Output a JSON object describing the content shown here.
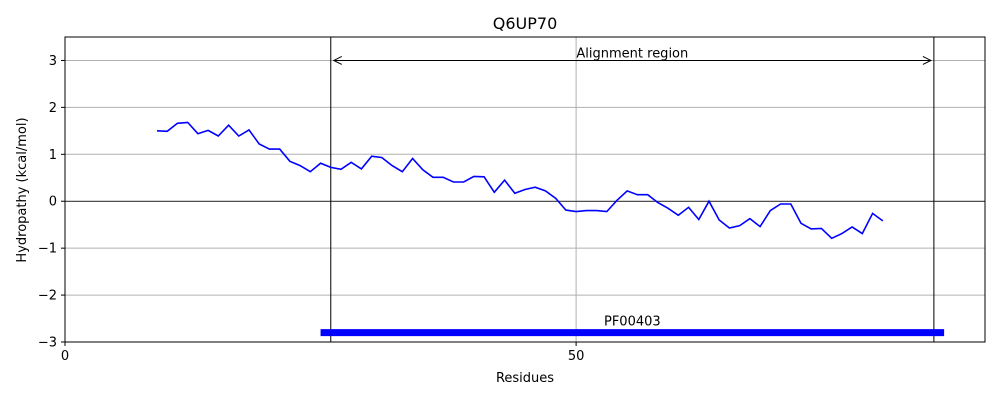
{
  "chart_data": {
    "type": "line",
    "title": "Q6UP70",
    "xlabel": "Residues",
    "ylabel": "Hydropathy (kcal/mol)",
    "xlim": [
      0,
      90
    ],
    "ylim": [
      -3,
      3.5
    ],
    "xticks": [
      0,
      50
    ],
    "yticks": [
      -3,
      -2,
      -1,
      0,
      1,
      2,
      3
    ],
    "grid": true,
    "series": [
      {
        "color": "#0000ff",
        "x": [
          9,
          10,
          11,
          12,
          13,
          14,
          15,
          16,
          17,
          18,
          19,
          20,
          21,
          22,
          23,
          24,
          25,
          26,
          27,
          28,
          29,
          30,
          31,
          32,
          33,
          34,
          35,
          36,
          37,
          38,
          39,
          40,
          41,
          42,
          43,
          44,
          45,
          46,
          47,
          48,
          49,
          50,
          51,
          52,
          53,
          54,
          55,
          56,
          57,
          58,
          59,
          60,
          61,
          62,
          63,
          64,
          65,
          66,
          67,
          68,
          69,
          70,
          71,
          72,
          73,
          74,
          75,
          76,
          77,
          78,
          79,
          80
        ],
        "y": [
          1.5,
          1.49,
          1.66,
          1.68,
          1.44,
          1.51,
          1.39,
          1.62,
          1.39,
          1.52,
          1.22,
          1.11,
          1.11,
          0.85,
          0.76,
          0.63,
          0.81,
          0.72,
          0.68,
          0.83,
          0.69,
          0.96,
          0.93,
          0.76,
          0.63,
          0.91,
          0.67,
          0.51,
          0.51,
          0.41,
          0.41,
          0.53,
          0.52,
          0.19,
          0.45,
          0.17,
          0.25,
          0.3,
          0.22,
          0.06,
          -0.19,
          -0.22,
          -0.2,
          -0.2,
          -0.22,
          0.02,
          0.22,
          0.14,
          0.14,
          -0.03,
          -0.15,
          -0.3,
          -0.13,
          -0.39,
          0.0,
          -0.4,
          -0.57,
          -0.52,
          -0.37,
          -0.54,
          -0.2,
          -0.06,
          -0.06,
          -0.47,
          -0.59,
          -0.58,
          -0.79,
          -0.69,
          -0.55,
          -0.69,
          -0.26,
          -0.42
        ]
      }
    ],
    "alignment_region": {
      "label": "Alignment region",
      "start": 26,
      "end": 85,
      "y": 3.0
    },
    "domains": [
      {
        "label": "PF00403",
        "start": 25,
        "end": 86,
        "y": -2.8,
        "color": "#0000ff"
      }
    ]
  }
}
